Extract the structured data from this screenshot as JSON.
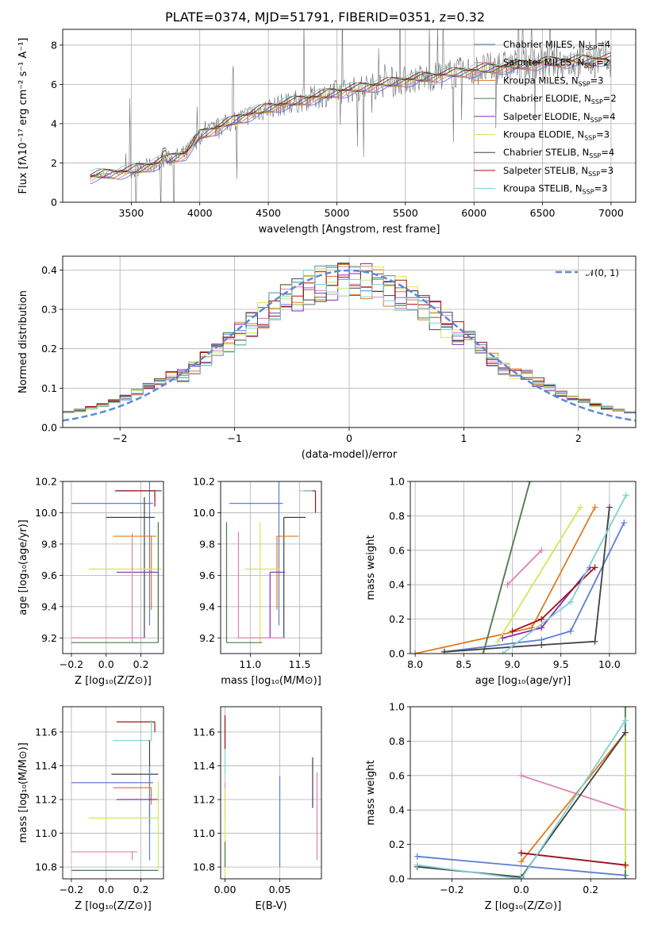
{
  "title": "PLATE=0374, MJD=51791, FIBERID=0351, z=0.32",
  "colors": [
    "#5b7fd1",
    "#e080b0",
    "#e07a20",
    "#4a7a4a",
    "#8a2ab0",
    "#d4e65a",
    "#404040",
    "#a01010",
    "#80d0d0"
  ],
  "chart_data": [
    {
      "id": "spectrum",
      "type": "line",
      "xlabel": "wavelength [Angstrom, rest frame]",
      "ylabel": "Flux [fλ10⁻¹⁷ erg cm⁻² s⁻¹ A⁻¹]",
      "xlim": [
        3000,
        7180
      ],
      "ylim": [
        0,
        8.8
      ],
      "xticks": [
        "3500",
        "4000",
        "4500",
        "5000",
        "5500",
        "6000",
        "6500",
        "7000"
      ],
      "yticks": [
        "0",
        "2",
        "4",
        "6",
        "8"
      ],
      "legend_placement": "top-right",
      "series": [
        {
          "name": "Chabrier MILES, N_SSP=4"
        },
        {
          "name": "Salpeter MILES, N_SSP=2"
        },
        {
          "name": "Kroupa MILES, N_SSP=3"
        },
        {
          "name": "Chabrier ELODIE, N_SSP=2"
        },
        {
          "name": "Salpeter ELODIE, N_SSP=4"
        },
        {
          "name": "Kroupa ELODIE, N_SSP=3"
        },
        {
          "name": "Chabrier STELIB, N_SSP=4"
        },
        {
          "name": "Salpeter STELIB, N_SSP=3"
        },
        {
          "name": "Kroupa STELIB, N_SSP=3"
        }
      ],
      "model_continuum": {
        "x": [
          3200,
          3500,
          3700,
          3900,
          4000,
          4300,
          4500,
          5000,
          5500,
          6000,
          6500,
          7000
        ],
        "y": [
          1.3,
          1.6,
          2.0,
          2.5,
          3.4,
          4.3,
          4.8,
          5.6,
          6.2,
          6.7,
          7.1,
          7.3
        ]
      }
    },
    {
      "id": "residuals",
      "type": "histogram",
      "xlabel": "(data-model)/error",
      "ylabel": "Normed distribution",
      "xlim": [
        -2.5,
        2.5
      ],
      "ylim": [
        0,
        0.435
      ],
      "xticks": [
        "−2",
        "−1",
        "0",
        "1",
        "2"
      ],
      "yticks": [
        "0.0",
        "0.1",
        "0.2",
        "0.3",
        "0.4"
      ],
      "legend": "𝒩(0, 1)",
      "gaussian": {
        "mu": 0,
        "sigma": 1
      }
    },
    {
      "id": "age-vs-Z",
      "type": "scatter",
      "xlabel": "Z [log₁₀(Z/Z⊙)]",
      "ylabel": "age  [log₁₀(age/yr)]",
      "xlim": [
        -0.25,
        0.33
      ],
      "ylim": [
        9.1,
        10.2
      ],
      "xticks": [
        "−0.2",
        "0.0",
        "0.2"
      ],
      "yticks": [
        "9.2",
        "9.4",
        "9.6",
        "9.8",
        "10.0",
        "10.2"
      ],
      "points": [
        {
          "x": 0.25,
          "y": 10.06,
          "xerr": [
            0.45,
            0.02
          ],
          "yerr": [
            0.78,
            0.14
          ],
          "c": 0
        },
        {
          "x": 0.05,
          "y": 10.14,
          "xerr": [
            0.0,
            0.27
          ],
          "yerr": [
            0.0,
            0.0
          ],
          "c": 6
        },
        {
          "x": 0.28,
          "y": 10.14,
          "xerr": [
            0.22,
            0.0
          ],
          "yerr": [
            0.1,
            0.0
          ],
          "c": 7
        },
        {
          "x": 0.22,
          "y": 9.97,
          "xerr": [
            0.22,
            0.06
          ],
          "yerr": [
            0.77,
            0.13
          ],
          "c": 6
        },
        {
          "x": 0.26,
          "y": 9.85,
          "xerr": [
            0.22,
            0.03
          ],
          "yerr": [
            0.47,
            0.0
          ],
          "c": 2
        },
        {
          "x": 0.3,
          "y": 9.64,
          "xerr": [
            0.4,
            0.02
          ],
          "yerr": [
            0.47,
            0.3
          ],
          "c": 5
        },
        {
          "x": 0.3,
          "y": 9.62,
          "xerr": [
            0.24,
            0.0
          ],
          "yerr": [
            0.42,
            0.0
          ],
          "c": 4
        },
        {
          "x": 0.3,
          "y": 9.17,
          "xerr": [
            0.5,
            0.0
          ],
          "yerr": [
            0.0,
            0.77
          ],
          "c": 3
        },
        {
          "x": 0.22,
          "y": 9.2,
          "xerr": [
            0.42,
            0.0
          ],
          "yerr": [
            0.0,
            0.0
          ],
          "c": 1
        },
        {
          "x": 0.15,
          "y": 9.17,
          "xerr": [
            0.0,
            0.0
          ],
          "yerr": [
            0.0,
            0.7
          ],
          "c": 1
        }
      ]
    },
    {
      "id": "age-vs-mass",
      "type": "scatter",
      "xlabel": "mass [log₁₀(M/M⊙)]",
      "ylabel": "",
      "xlim": [
        10.7,
        11.72
      ],
      "ylim": [
        9.1,
        10.2
      ],
      "xticks": [
        "11.0",
        "11.5"
      ],
      "yticks": [
        "9.2",
        "9.4",
        "9.6",
        "9.8",
        "10.0",
        "10.2"
      ],
      "points": [
        {
          "x": 11.29,
          "y": 10.06,
          "xerr": [
            0.5,
            0.04
          ],
          "yerr": [
            0.78,
            0.14
          ],
          "c": 0
        },
        {
          "x": 11.66,
          "y": 10.14,
          "xerr": [
            0.12,
            0.0
          ],
          "yerr": [
            0.14,
            0.0
          ],
          "c": 7
        },
        {
          "x": 11.5,
          "y": 10.14,
          "xerr": [
            0.0,
            0.13
          ],
          "yerr": [
            0.0,
            0.0
          ],
          "c": 8
        },
        {
          "x": 11.34,
          "y": 9.97,
          "xerr": [
            0.0,
            0.22
          ],
          "yerr": [
            0.77,
            0.0
          ],
          "c": 6
        },
        {
          "x": 11.27,
          "y": 9.85,
          "xerr": [
            0.0,
            0.22
          ],
          "yerr": [
            0.47,
            0.0
          ],
          "c": 2
        },
        {
          "x": 11.1,
          "y": 9.64,
          "xerr": [
            0.16,
            0.2
          ],
          "yerr": [
            0.47,
            0.3
          ],
          "c": 5
        },
        {
          "x": 11.2,
          "y": 9.62,
          "xerr": [
            0.0,
            0.15
          ],
          "yerr": [
            0.42,
            0.0
          ],
          "c": 4
        },
        {
          "x": 10.76,
          "y": 9.17,
          "xerr": [
            0.0,
            0.36
          ],
          "yerr": [
            0.0,
            0.77
          ],
          "c": 3
        },
        {
          "x": 10.88,
          "y": 9.2,
          "xerr": [
            0.0,
            0.45
          ],
          "yerr": [
            0.0,
            0.68
          ],
          "c": 1
        }
      ]
    },
    {
      "id": "weight-vs-age",
      "type": "line",
      "xlabel": "age  [log₁₀(age/yr)]",
      "ylabel": "mass weight",
      "xlim": [
        7.95,
        10.27
      ],
      "ylim": [
        0,
        1
      ],
      "xticks": [
        "8.0",
        "8.5",
        "9.0",
        "9.5",
        "10.0"
      ],
      "yticks": [
        "0.0",
        "0.2",
        "0.4",
        "0.6",
        "0.8",
        "1.0"
      ],
      "series": [
        {
          "c": 0,
          "x": [
            8.3,
            9.3,
            9.6,
            10.15
          ],
          "y": [
            0.01,
            0.08,
            0.13,
            0.76
          ]
        },
        {
          "c": 1,
          "x": [
            8.95,
            9.3
          ],
          "y": [
            0.4,
            0.6
          ]
        },
        {
          "c": 2,
          "x": [
            8.0,
            9.2,
            9.85
          ],
          "y": [
            0.0,
            0.15,
            0.85
          ]
        },
        {
          "c": 3,
          "x": [
            8.7,
            9.18
          ],
          "y": [
            0.0,
            1.0
          ]
        },
        {
          "c": 4,
          "x": [
            8.9,
            9.3,
            9.8
          ],
          "y": [
            0.09,
            0.15,
            0.5
          ]
        },
        {
          "c": 5,
          "x": [
            8.85,
            9.7
          ],
          "y": [
            0.07,
            0.85
          ]
        },
        {
          "c": 6,
          "x": [
            8.3,
            9.3,
            9.85,
            10.0
          ],
          "y": [
            0.01,
            0.05,
            0.07,
            0.85
          ]
        },
        {
          "c": 7,
          "x": [
            9.0,
            9.3,
            9.85
          ],
          "y": [
            0.13,
            0.2,
            0.5
          ]
        },
        {
          "c": 8,
          "x": [
            8.9,
            9.6,
            10.17
          ],
          "y": [
            0.0,
            0.3,
            0.92
          ]
        }
      ]
    },
    {
      "id": "mass-vs-Z",
      "type": "scatter",
      "xlabel": "Z [log₁₀(Z/Z⊙)]",
      "ylabel": "mass [log₁₀(M/M⊙)]",
      "xlim": [
        -0.25,
        0.33
      ],
      "ylim": [
        10.73,
        11.75
      ],
      "xticks": [
        "−0.2",
        "0.0",
        "0.2"
      ],
      "yticks": [
        "10.8",
        "11.0",
        "11.2",
        "11.4",
        "11.6"
      ],
      "points": [
        {
          "x": 0.28,
          "y": 11.66,
          "xerr": [
            0.22,
            0.0
          ],
          "yerr": [
            0.06,
            0.0
          ],
          "c": 7
        },
        {
          "x": 0.26,
          "y": 11.55,
          "xerr": [
            0.22,
            0.0
          ],
          "yerr": [
            0.0,
            0.12
          ],
          "c": 8
        },
        {
          "x": 0.25,
          "y": 11.35,
          "xerr": [
            0.22,
            0.05
          ],
          "yerr": [
            0.3,
            0.2
          ],
          "c": 6
        },
        {
          "x": 0.25,
          "y": 11.3,
          "xerr": [
            0.45,
            0.02
          ],
          "yerr": [
            0.46,
            0.1
          ],
          "c": 0
        },
        {
          "x": 0.26,
          "y": 11.27,
          "xerr": [
            0.22,
            0.0
          ],
          "yerr": [
            0.1,
            0.0
          ],
          "c": 2
        },
        {
          "x": 0.3,
          "y": 11.2,
          "xerr": [
            0.24,
            0.0
          ],
          "yerr": [
            0.0,
            0.0
          ],
          "c": 4
        },
        {
          "x": 0.3,
          "y": 11.09,
          "xerr": [
            0.4,
            0.0
          ],
          "yerr": [
            0.3,
            0.22
          ],
          "c": 5
        },
        {
          "x": 0.15,
          "y": 10.89,
          "xerr": [
            0.35,
            0.03
          ],
          "yerr": [
            0.05,
            0.0
          ],
          "c": 1
        },
        {
          "x": 0.3,
          "y": 10.78,
          "xerr": [
            0.5,
            0.0
          ],
          "yerr": [
            0.0,
            0.0
          ],
          "c": 3
        }
      ]
    },
    {
      "id": "mass-vs-EBV",
      "type": "scatter",
      "xlabel": "E(B-V)",
      "ylabel": "",
      "xlim": [
        -0.004,
        0.088
      ],
      "ylim": [
        10.73,
        11.75
      ],
      "xticks": [
        "0.00",
        "0.05"
      ],
      "yticks": [
        "10.8",
        "11.0",
        "11.2",
        "11.4",
        "11.6"
      ],
      "points": [
        {
          "x": 0.0,
          "y": 11.55,
          "yerr": [
            0.2,
            0.12
          ],
          "c": 8
        },
        {
          "x": 0.0,
          "y": 11.6,
          "yerr": [
            0.1,
            0.1
          ],
          "c": 7
        },
        {
          "x": 0.0,
          "y": 11.3,
          "yerr": [
            0.22,
            0.0
          ],
          "c": 1
        },
        {
          "x": 0.0,
          "y": 11.05,
          "yerr": [
            0.3,
            0.22
          ],
          "c": 5
        },
        {
          "x": 0.0,
          "y": 10.95,
          "yerr": [
            0.15,
            0.0
          ],
          "c": 3
        },
        {
          "x": 0.05,
          "y": 11.1,
          "yerr": [
            0.3,
            0.24
          ],
          "c": 0
        },
        {
          "x": 0.08,
          "y": 11.35,
          "yerr": [
            0.2,
            0.1
          ],
          "c": 6
        },
        {
          "x": 0.084,
          "y": 11.1,
          "yerr": [
            0.26,
            0.26
          ],
          "c": 1
        }
      ]
    },
    {
      "id": "weight-vs-Z",
      "type": "line",
      "xlabel": "Z [log₁₀(Z/Z⊙)]",
      "ylabel": "mass weight",
      "xlim": [
        -0.32,
        0.33
      ],
      "ylim": [
        0,
        1
      ],
      "xticks": [
        "−0.2",
        "0.0",
        "0.2"
      ],
      "yticks": [
        "0.0",
        "0.2",
        "0.4",
        "0.6",
        "0.8",
        "1.0"
      ],
      "series": [
        {
          "c": 0,
          "x": [
            -0.3,
            0.3
          ],
          "y": [
            0.13,
            0.02
          ]
        },
        {
          "c": 1,
          "x": [
            0.0,
            0.3
          ],
          "y": [
            0.6,
            0.4
          ]
        },
        {
          "c": 2,
          "x": [
            0.0,
            0.3
          ],
          "y": [
            0.1,
            0.85
          ]
        },
        {
          "c": 3,
          "x": [
            0.3,
            0.3
          ],
          "y": [
            0.0,
            1.0
          ]
        },
        {
          "c": 4,
          "x": [
            0.0,
            0.3
          ],
          "y": [
            0.15,
            0.08
          ]
        },
        {
          "c": 5,
          "x": [
            0.3,
            0.3
          ],
          "y": [
            0.07,
            0.85
          ]
        },
        {
          "c": 6,
          "x": [
            -0.3,
            0.0,
            0.3
          ],
          "y": [
            0.07,
            0.01,
            0.85
          ]
        },
        {
          "c": 7,
          "x": [
            0.0,
            0.3
          ],
          "y": [
            0.15,
            0.08
          ]
        },
        {
          "c": 8,
          "x": [
            -0.3,
            0.0,
            0.3
          ],
          "y": [
            0.08,
            0.0,
            0.92
          ]
        }
      ]
    }
  ]
}
